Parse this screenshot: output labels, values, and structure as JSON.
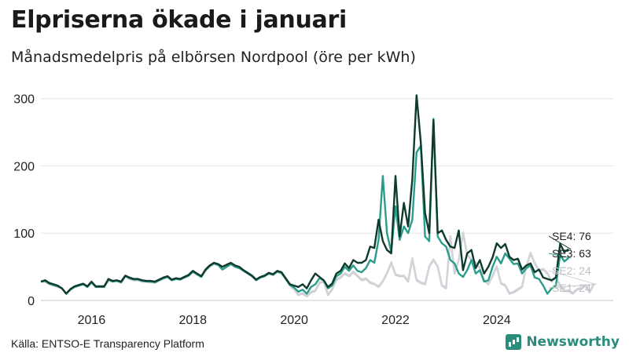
{
  "title": "Elpriserna ökade i januari",
  "subtitle": "Månadsmedelpris på elbörsen Nordpool (öre per kWh)",
  "source": "Källa: ENTSO-E Transparency Platform",
  "brand": "Newsworthy",
  "chart_data": {
    "type": "line",
    "title": "Elpriserna ökade i januari",
    "subtitle": "Månadsmedelpris på elbörsen Nordpool (öre per kWh)",
    "ylim": [
      0,
      330
    ],
    "yticks": [
      0,
      100,
      200,
      300
    ],
    "xticks": [
      2016,
      2018,
      2020,
      2022,
      2024
    ],
    "x_start": "2015-01",
    "grid": true,
    "series": [
      {
        "name": "SE1",
        "label": "SE1: 24",
        "color": "#c4c4cc",
        "values": [
          28,
          28,
          24,
          22,
          20,
          18,
          10,
          16,
          20,
          22,
          24,
          20,
          26,
          20,
          20,
          20,
          30,
          28,
          29,
          26,
          36,
          32,
          30,
          30,
          28,
          28,
          27,
          26,
          29,
          32,
          35,
          30,
          32,
          31,
          34,
          36,
          42,
          38,
          35,
          44,
          50,
          54,
          52,
          46,
          50,
          54,
          50,
          48,
          44,
          40,
          36,
          30,
          34,
          36,
          40,
          38,
          42,
          40,
          32,
          22,
          16,
          8,
          10,
          6,
          12,
          14,
          26,
          28,
          8,
          16,
          30,
          34,
          40,
          36,
          42,
          36,
          30,
          32,
          26,
          24,
          20,
          28,
          40,
          56,
          38,
          36,
          36,
          28,
          62,
          30,
          26,
          24,
          50,
          60,
          50,
          22,
          18,
          95,
          40,
          60,
          100,
          68,
          60,
          56,
          48,
          30,
          24,
          36,
          50,
          25,
          22,
          10,
          12,
          16,
          20,
          50,
          70,
          55,
          44,
          46,
          40,
          28,
          34,
          22,
          14,
          14,
          10,
          16,
          18,
          22,
          12,
          24
        ]
      },
      {
        "name": "SE2",
        "label": "SE2: 24",
        "color": "#d3d3da",
        "values": [
          28,
          28,
          24,
          22,
          20,
          18,
          10,
          16,
          20,
          22,
          24,
          20,
          26,
          20,
          20,
          20,
          30,
          28,
          29,
          26,
          36,
          32,
          30,
          30,
          28,
          28,
          27,
          26,
          29,
          32,
          35,
          30,
          32,
          31,
          34,
          36,
          42,
          38,
          35,
          44,
          50,
          54,
          52,
          46,
          50,
          54,
          50,
          48,
          44,
          40,
          36,
          30,
          34,
          36,
          40,
          38,
          42,
          40,
          32,
          22,
          16,
          9,
          11,
          7,
          13,
          15,
          27,
          29,
          9,
          17,
          31,
          35,
          41,
          37,
          43,
          37,
          31,
          33,
          27,
          25,
          21,
          29,
          41,
          57,
          39,
          37,
          37,
          29,
          63,
          31,
          27,
          25,
          51,
          61,
          51,
          23,
          19,
          96,
          41,
          61,
          101,
          69,
          61,
          57,
          49,
          31,
          25,
          37,
          51,
          26,
          23,
          11,
          13,
          17,
          21,
          51,
          71,
          56,
          45,
          47,
          41,
          29,
          35,
          23,
          15,
          15,
          11,
          17,
          19,
          23,
          13,
          24
        ]
      },
      {
        "name": "SE3",
        "label": "SE3: 63",
        "color": "#2a9d8a",
        "values": [
          28,
          29,
          25,
          23,
          21,
          18,
          10,
          16,
          20,
          22,
          24,
          20,
          27,
          20,
          20,
          20,
          31,
          28,
          29,
          27,
          36,
          33,
          31,
          31,
          29,
          28,
          28,
          27,
          30,
          33,
          35,
          30,
          32,
          31,
          34,
          37,
          43,
          39,
          35,
          45,
          51,
          55,
          53,
          46,
          50,
          54,
          50,
          48,
          44,
          40,
          36,
          30,
          34,
          36,
          40,
          38,
          43,
          41,
          32,
          23,
          19,
          13,
          16,
          10,
          20,
          24,
          33,
          30,
          18,
          22,
          36,
          40,
          50,
          44,
          52,
          44,
          42,
          48,
          60,
          56,
          90,
          185,
          100,
          72,
          140,
          90,
          110,
          100,
          120,
          220,
          230,
          95,
          88,
          270,
          95,
          85,
          80,
          60,
          55,
          40,
          35,
          45,
          60,
          40,
          45,
          28,
          30,
          50,
          65,
          55,
          70,
          62,
          54,
          55,
          40,
          48,
          52,
          34,
          32,
          22,
          10,
          18,
          22,
          68,
          58,
          63
        ]
      },
      {
        "name": "SE4",
        "label": "SE4: 76",
        "color": "#0f3a2e",
        "values": [
          28,
          30,
          26,
          24,
          22,
          18,
          10,
          17,
          21,
          23,
          25,
          21,
          28,
          21,
          21,
          21,
          32,
          29,
          30,
          28,
          37,
          34,
          32,
          32,
          30,
          29,
          29,
          28,
          31,
          34,
          36,
          31,
          33,
          32,
          35,
          38,
          44,
          40,
          36,
          46,
          52,
          56,
          54,
          50,
          53,
          56,
          52,
          50,
          45,
          41,
          37,
          31,
          35,
          37,
          41,
          39,
          44,
          42,
          33,
          24,
          22,
          20,
          24,
          18,
          30,
          40,
          35,
          30,
          20,
          25,
          40,
          44,
          55,
          48,
          60,
          56,
          56,
          60,
          80,
          78,
          120,
          88,
          75,
          70,
          185,
          95,
          145,
          110,
          180,
          305,
          235,
          130,
          100,
          268,
          100,
          104,
          90,
          80,
          78,
          104,
          45,
          70,
          75,
          48,
          60,
          40,
          50,
          64,
          85,
          78,
          84,
          65,
          60,
          62,
          46,
          52,
          55,
          42,
          46,
          34,
          32,
          30,
          34,
          84,
          72,
          76
        ]
      }
    ]
  }
}
